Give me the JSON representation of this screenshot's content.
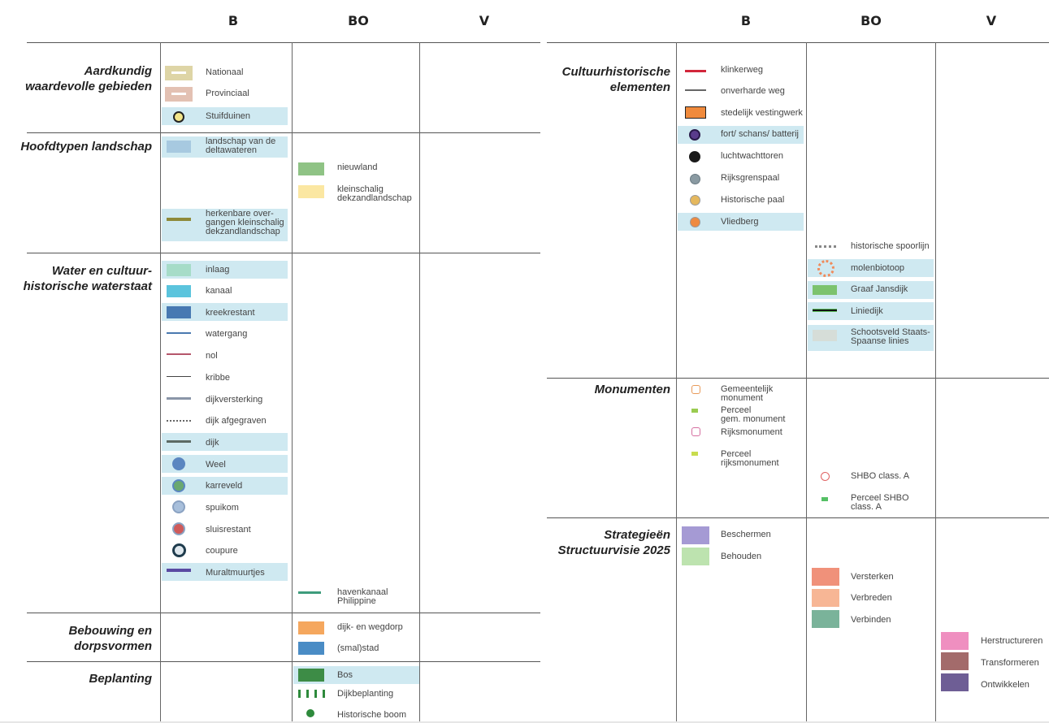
{
  "left_columns": [
    "B",
    "BO",
    "V"
  ],
  "right_columns": [
    "B",
    "BO",
    "V"
  ],
  "left_sections": [
    {
      "title": "Aardkundig\nwaardevolle gebieden"
    },
    {
      "title": "Hoofdtypen landschap"
    },
    {
      "title": "Water en cultuur-\nhistorische waterstaat"
    },
    {
      "title": "Bebouwing en\ndorpsvormen"
    },
    {
      "title": "Beplanting"
    }
  ],
  "right_sections": [
    {
      "title": "Cultuurhistorische\nelementen"
    },
    {
      "title": "Monumenten"
    },
    {
      "title": "Strategieën\nStructuurvisie 2025"
    }
  ],
  "items": [
    {
      "label": "Nationaal",
      "symbol": "bar",
      "color": "#ded5a6"
    },
    {
      "label": "Provinciaal",
      "symbol": "bar",
      "color": "#e3c1b3"
    },
    {
      "label": "Stuifduinen",
      "symbol": "dot-ring",
      "color": "#f3e58a"
    },
    {
      "label": "landschap van de\ndeltawateren",
      "symbol": "swatch",
      "color": "#a7c9e0"
    },
    {
      "label": "herkenbare over-\ngangen kleinschalig\ndekzandlandschap",
      "symbol": "line",
      "color": "#8e8a3a"
    },
    {
      "label": "nieuwland",
      "symbol": "swatch",
      "color": "#8fc385"
    },
    {
      "label": "kleinschalig\ndekzandlandschap",
      "symbol": "swatch",
      "color": "#fbe7a2"
    },
    {
      "label": "inlaag",
      "symbol": "swatch",
      "color": "#a6dcc8"
    },
    {
      "label": "kanaal",
      "symbol": "swatch",
      "color": "#5bc4dd"
    },
    {
      "label": "kreekrestant",
      "symbol": "swatch",
      "color": "#4779b2"
    },
    {
      "label": "watergang",
      "symbol": "line",
      "color": "#4a79b0"
    },
    {
      "label": "nol",
      "symbol": "line",
      "color": "#b5566b"
    },
    {
      "label": "kribbe",
      "symbol": "line",
      "color": "#444444"
    },
    {
      "label": "dijkversterking",
      "symbol": "line",
      "color": "#8a96a8"
    },
    {
      "label": "dijk afgegraven",
      "symbol": "dotted",
      "color": "#666666"
    },
    {
      "label": "dijk",
      "symbol": "line",
      "color": "#5c6a64"
    },
    {
      "label": "Weel",
      "symbol": "dot",
      "color": "#5b86c0"
    },
    {
      "label": "karreveld",
      "symbol": "dot-ring",
      "color": "#6aa870"
    },
    {
      "label": "spuikom",
      "symbol": "dot-ring",
      "color": "#a8bfdb"
    },
    {
      "label": "sluisrestant",
      "symbol": "dot-ring",
      "color": "#cf5a5a"
    },
    {
      "label": "coupure",
      "symbol": "dot-ring",
      "color": "#2e5166"
    },
    {
      "label": "Muraltmuurtjes",
      "symbol": "line",
      "color": "#5a4aa2"
    },
    {
      "label": "havenkanaal\nPhilippine",
      "symbol": "line",
      "color": "#3e9c7c"
    },
    {
      "label": "dijk- en wegdorp",
      "symbol": "swatch",
      "color": "#f5a75e"
    },
    {
      "label": "(smal)stad",
      "symbol": "swatch",
      "color": "#4a8cc5"
    },
    {
      "label": "Bos",
      "symbol": "swatch",
      "color": "#3d8c46"
    },
    {
      "label": "Dijkbeplanting",
      "symbol": "ticks",
      "color": "#2e8a3c"
    },
    {
      "label": "Historische boom",
      "symbol": "dot",
      "color": "#2e8a3c"
    },
    {
      "label": "klinkerweg",
      "symbol": "line",
      "color": "#d2263b"
    },
    {
      "label": "onverharde weg",
      "symbol": "line",
      "color": "#666666"
    },
    {
      "label": "stedelijk vestingwerk",
      "symbol": "swatch",
      "color": "#f08a3c"
    },
    {
      "label": "fort/ schans/ batterij",
      "symbol": "dot-ring",
      "color": "#5a3c8c"
    },
    {
      "label": "luchtwachttoren",
      "symbol": "dot",
      "color": "#1a1a1a"
    },
    {
      "label": "Rijksgrenspaal",
      "symbol": "dot",
      "color": "#8a9aa2"
    },
    {
      "label": "Historische paal",
      "symbol": "dot",
      "color": "#e5b85e"
    },
    {
      "label": "Vliedberg",
      "symbol": "dot",
      "color": "#ee8a40"
    },
    {
      "label": "historische spoorlijn",
      "symbol": "dashed",
      "color": "#888888"
    },
    {
      "label": "molenbiotoop",
      "symbol": "dashed-ring",
      "color": "#f08a5a"
    },
    {
      "label": "Graaf Jansdijk",
      "symbol": "swatch",
      "color": "#7cc36e"
    },
    {
      "label": "Liniedijk",
      "symbol": "line-green",
      "color": "#111111"
    },
    {
      "label": "Schootsveld Staats-\nSpaanse linies",
      "symbol": "swatch",
      "color": "#d6ddd8"
    },
    {
      "label": "Gemeentelijk\nmonument",
      "symbol": "pentagon",
      "color": "#e89a5a"
    },
    {
      "label": "Perceel\ngem. monument",
      "symbol": "small-rect",
      "color": "#9acb50"
    },
    {
      "label": "Rijksmonument",
      "symbol": "pentagon",
      "color": "#d56fa0"
    },
    {
      "label": "Perceel\nrijksmonument",
      "symbol": "small-rect",
      "color": "#c8dc4e"
    },
    {
      "label": "SHBO class. A",
      "symbol": "pentagon",
      "color": "#e06060"
    },
    {
      "label": "Perceel SHBO\nclass. A",
      "symbol": "small-rect",
      "color": "#55c065"
    },
    {
      "label": "Beschermen",
      "symbol": "swatch",
      "color": "#a59ad4"
    },
    {
      "label": "Behouden",
      "symbol": "swatch",
      "color": "#bde3af"
    },
    {
      "label": "Versterken",
      "symbol": "swatch",
      "color": "#f0917a"
    },
    {
      "label": "Verbreden",
      "symbol": "swatch",
      "color": "#f7b695"
    },
    {
      "label": "Verbinden",
      "symbol": "swatch",
      "color": "#7ab39a"
    },
    {
      "label": "Herstructureren",
      "symbol": "swatch",
      "color": "#ef8fc0"
    },
    {
      "label": "Transformeren",
      "symbol": "swatch",
      "color": "#a36b6b"
    },
    {
      "label": "Ontwikkelen",
      "symbol": "swatch",
      "color": "#6e5e95"
    }
  ]
}
